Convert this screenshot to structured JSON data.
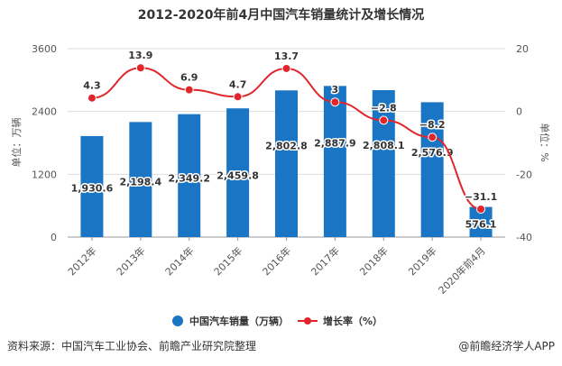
{
  "chart_data": {
    "type": "bar+line",
    "title": "2012-2020年前4月中国汽车销量统计及增长情况",
    "categories": [
      "2012年",
      "2013年",
      "2014年",
      "2015年",
      "2016年",
      "2017年",
      "2018年",
      "2019年",
      "2020年前4月"
    ],
    "series": [
      {
        "name": "中国汽车销量（万辆）",
        "type": "bar",
        "axis": "left",
        "color": "#1a75c4",
        "values": [
          1930.6,
          2198.4,
          2349.2,
          2459.8,
          2802.8,
          2887.9,
          2808.1,
          2576.9,
          576.1
        ],
        "labels": [
          "1,930.6",
          "2,198.4",
          "2,349.2",
          "2,459.8",
          "2,802.8",
          "2,887.9",
          "2,808.1",
          "2,576.9",
          "576.1"
        ]
      },
      {
        "name": "增长率（%）",
        "type": "line",
        "axis": "right",
        "color": "#e0262b",
        "values": [
          4.3,
          13.9,
          6.9,
          4.7,
          13.7,
          3,
          -2.8,
          -8.2,
          -31.1
        ],
        "labels": [
          "4.3",
          "13.9",
          "6.9",
          "4.7",
          "13.7",
          "3",
          "−2.8",
          "−8.2",
          "−31.1"
        ]
      }
    ],
    "ylabel": "单位：万辆",
    "ylim": [
      0,
      3600
    ],
    "yticks": [
      "0",
      "1200",
      "2400",
      "3600"
    ],
    "y2label": "单位：%",
    "y2lim": [
      -40,
      20
    ],
    "y2ticks": [
      "-40",
      "-20",
      "0",
      "20"
    ],
    "grid": true,
    "legend": "bottom"
  },
  "source": "资料来源：中国汽车工业协会、前瞻产业研究院整理",
  "brand": "@前瞻经济学人APP"
}
